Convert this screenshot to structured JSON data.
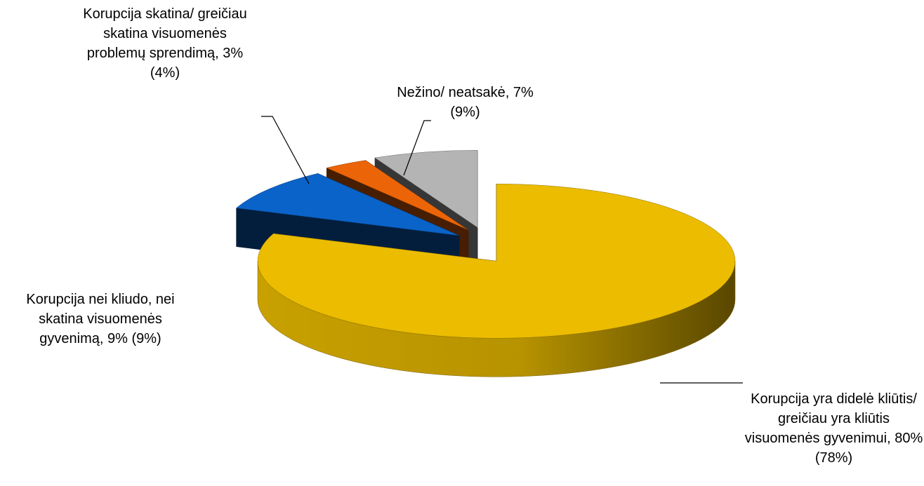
{
  "chart_data": {
    "type": "pie3d",
    "categories": [
      "Korupcija yra didelė kliūtis/ greičiau yra kliūtis visuomenės gyvenimui,",
      "Korupcija nei kliudo, nei skatina visuomenės gyvenimą,",
      "Korupcija skatina/ greičiau skatina visuomenės problemų sprendimą,",
      "Nežino/ neatsakė,"
    ],
    "values": [
      80,
      9,
      3,
      7
    ],
    "value_labels": [
      "80% (78%)",
      "9% (9%)",
      "3% (4%)",
      "7% (9%)"
    ],
    "colors": [
      "#ebbc00",
      "#0a63c8",
      "#ec6408",
      "#b4b4b4"
    ]
  }
}
